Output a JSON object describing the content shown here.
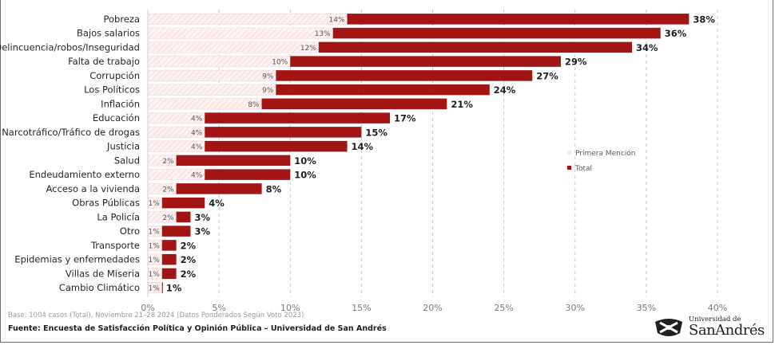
{
  "chart_data": {
    "type": "bar",
    "orientation": "horizontal",
    "categories": [
      "Pobreza",
      "Bajos salarios",
      "Delincuencia/robos/Inseguridad",
      "Falta de trabajo",
      "Corrupción",
      "Los Políticos",
      "Inflación",
      "Educación",
      "Narcotráfico/Tráfico de drogas",
      "Justicia",
      "Salud",
      "Endeudamiento externo",
      "Acceso a la vivienda",
      "Obras Públicas",
      "La Policía",
      "Otro",
      "Transporte",
      "Epidemias y enfermedades",
      "Villas de Miseria",
      "Cambio Climático"
    ],
    "series": [
      {
        "name": "Primera Mención",
        "values": [
          14,
          13,
          12,
          10,
          9,
          9,
          8,
          4,
          4,
          4,
          2,
          4,
          2,
          1,
          2,
          1,
          1,
          1,
          1,
          1
        ],
        "labels": [
          "14%",
          "13%",
          "12%",
          "10%",
          "9%",
          "9%",
          "8%",
          "4%",
          "4%",
          "4%",
          "2%",
          "4%",
          "2%",
          "1%",
          "2%",
          "1%",
          "1%",
          "1%",
          "1%",
          "1%"
        ],
        "color": "#fbe6e6"
      },
      {
        "name": "Total",
        "values": [
          38,
          36,
          34,
          29,
          27,
          24,
          21,
          17,
          15,
          14,
          10,
          10,
          8,
          4,
          3,
          3,
          2,
          2,
          2,
          1
        ],
        "labels": [
          "38%",
          "36%",
          "34%",
          "29%",
          "27%",
          "24%",
          "21%",
          "17%",
          "15%",
          "14%",
          "10%",
          "10%",
          "8%",
          "4%",
          "3%",
          "3%",
          "2%",
          "2%",
          "2%",
          "1%"
        ],
        "color": "#a31515"
      }
    ],
    "x_ticks": [
      "0%",
      "5%",
      "10%",
      "15%",
      "20%",
      "25%",
      "30%",
      "35%",
      "40%"
    ],
    "xlim": [
      0,
      40
    ],
    "grid": "vertical dashed",
    "legend": "right"
  },
  "notes": {
    "base": "Base: 1004 casos (Total), Noviembre 21–28 2024 (Datos Ponderados Según Voto 2023)",
    "source": "Fuente: Encuesta de Satisfacción Política y Opinión Pública – Universidad de San Andrés"
  },
  "logo": {
    "small_text": "Universidad de",
    "big_text": "SanAndrés"
  },
  "colors": {
    "total_bar": "#a31515",
    "first_bar": "#fbe6e6",
    "grid": "#c8c8c8"
  }
}
